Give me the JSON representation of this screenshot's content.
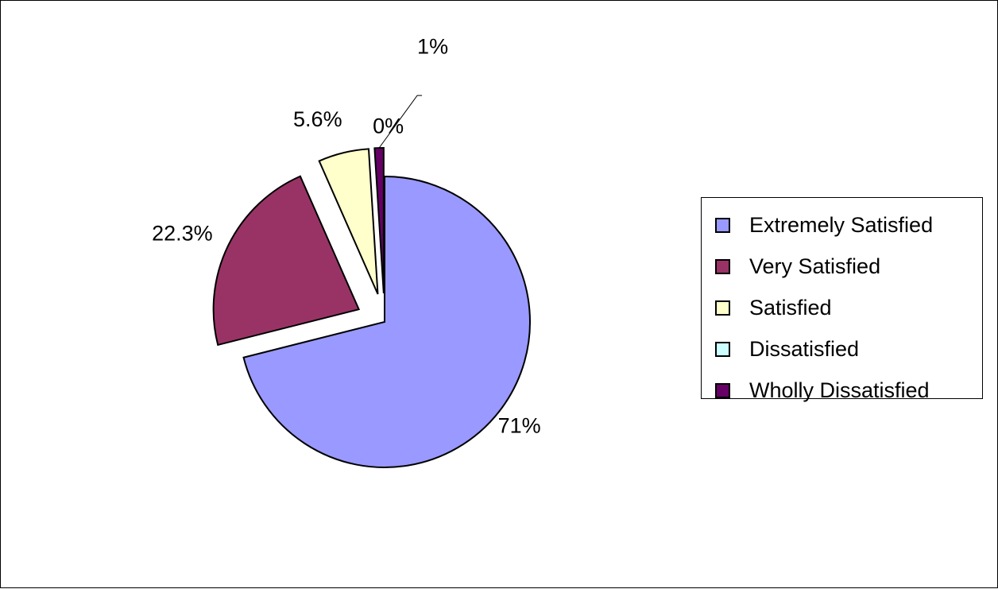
{
  "chart_data": {
    "type": "pie",
    "categories": [
      "Extremely Satisfied",
      "Very Satisfied",
      "Satisfied",
      "Dissatisfied",
      "Wholly Dissatisfied"
    ],
    "values": [
      71,
      22.3,
      5.6,
      0,
      1
    ],
    "data_labels": [
      "71%",
      "22.3%",
      "5.6%",
      "0%",
      "1%"
    ],
    "colors": [
      "#9999FF",
      "#993366",
      "#FFFFCC",
      "#CCFFFF",
      "#660066"
    ],
    "exploded": true,
    "title": "",
    "legend_position": "right"
  }
}
